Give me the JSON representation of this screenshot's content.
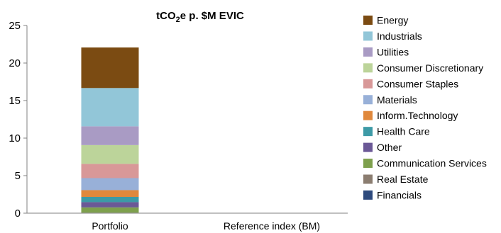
{
  "chart_data": {
    "type": "bar",
    "stacked": true,
    "title": "tCO",
    "title_subscript": "2",
    "title_suffix": "e p. $M EVIC",
    "categories": [
      "Portfolio",
      "Reference index (BM)"
    ],
    "ylim": [
      0,
      25
    ],
    "yticks": [
      "0",
      "5",
      "10",
      "15",
      "20",
      "25"
    ],
    "ytick_values": [
      0,
      5,
      10,
      15,
      20,
      25
    ],
    "grid": false,
    "legend_position": "right",
    "series": [
      {
        "name": "Financials",
        "color": "#2e4a7d",
        "values": [
          0.02,
          0
        ]
      },
      {
        "name": "Real Estate",
        "color": "#8b7d70",
        "values": [
          0.05,
          0
        ]
      },
      {
        "name": "Communication Services",
        "color": "#7ea04d",
        "values": [
          0.7,
          0
        ]
      },
      {
        "name": "Other",
        "color": "#6b5896",
        "values": [
          0.7,
          0
        ]
      },
      {
        "name": "Health Care",
        "color": "#3d9aa6",
        "values": [
          0.7,
          0
        ]
      },
      {
        "name": "Inform.Technology",
        "color": "#e0883c",
        "values": [
          0.9,
          0
        ]
      },
      {
        "name": "Materials",
        "color": "#98b0d8",
        "values": [
          1.6,
          0
        ]
      },
      {
        "name": "Consumer Staples",
        "color": "#d89898",
        "values": [
          1.9,
          0
        ]
      },
      {
        "name": "Consumer Discretionary",
        "color": "#bcd49a",
        "values": [
          2.5,
          0
        ]
      },
      {
        "name": "Utilities",
        "color": "#a99bc4",
        "values": [
          2.5,
          0
        ]
      },
      {
        "name": "Industrials",
        "color": "#92c6d8",
        "values": [
          5.1,
          0
        ]
      },
      {
        "name": "Energy",
        "color": "#7b4b12",
        "values": [
          5.4,
          0
        ]
      }
    ]
  }
}
